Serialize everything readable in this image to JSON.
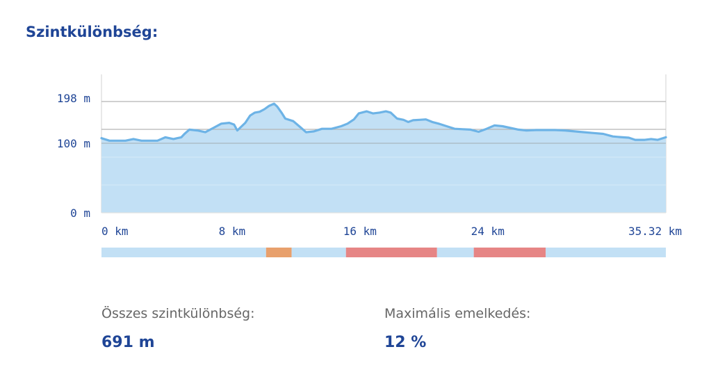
{
  "section": {
    "title": "Szintkülönbség:"
  },
  "colors": {
    "title": "#1f4596",
    "axis_text": "#1f4596",
    "profile_line": "#6db3e6",
    "profile_fill": "#c2e0f5",
    "grid": "#b5b5b5",
    "grade_low": "#c2e0f5",
    "grade_medium": "#e8a06c",
    "grade_high": "#e68585",
    "label_text": "#666666"
  },
  "chart_data": {
    "type": "area",
    "title": "",
    "xlabel": "",
    "ylabel": "",
    "x_unit": "km",
    "y_unit": "m",
    "xlim": [
      0,
      35.32
    ],
    "ylim": [
      0,
      198
    ],
    "y_ticks": [
      {
        "value": 198,
        "label": "198 m"
      },
      {
        "value": 100,
        "label": "100 m"
      },
      {
        "value": 0,
        "label": "0 m"
      }
    ],
    "x_ticks": [
      {
        "value": 0,
        "label": "0 km"
      },
      {
        "value": 8,
        "label": "8 km"
      },
      {
        "value": 16,
        "label": "16 km"
      },
      {
        "value": 24,
        "label": "24 km"
      },
      {
        "value": 35.32,
        "label": "35.32 km"
      }
    ],
    "grid": true,
    "series": [
      {
        "points": [
          [
            0,
            112
          ],
          [
            0.5,
            106
          ],
          [
            1.0,
            106
          ],
          [
            1.5,
            106
          ],
          [
            2.0,
            110
          ],
          [
            2.5,
            106
          ],
          [
            3.0,
            106
          ],
          [
            3.5,
            106
          ],
          [
            4.0,
            114
          ],
          [
            4.5,
            110
          ],
          [
            5.0,
            114
          ],
          [
            5.2,
            122
          ],
          [
            5.5,
            132
          ],
          [
            6.0,
            130
          ],
          [
            6.5,
            126
          ],
          [
            7.0,
            136
          ],
          [
            7.5,
            146
          ],
          [
            8.0,
            148
          ],
          [
            8.3,
            144
          ],
          [
            8.5,
            130
          ],
          [
            9.0,
            148
          ],
          [
            9.3,
            165
          ],
          [
            9.6,
            172
          ],
          [
            9.9,
            174
          ],
          [
            10.2,
            180
          ],
          [
            10.5,
            188
          ],
          [
            10.8,
            193
          ],
          [
            11.0,
            186
          ],
          [
            11.3,
            170
          ],
          [
            11.5,
            158
          ],
          [
            12.0,
            152
          ],
          [
            12.5,
            136
          ],
          [
            12.8,
            126
          ],
          [
            13.3,
            128
          ],
          [
            13.8,
            134
          ],
          [
            14.4,
            134
          ],
          [
            15.0,
            140
          ],
          [
            15.4,
            146
          ],
          [
            15.8,
            156
          ],
          [
            16.1,
            170
          ],
          [
            16.6,
            175
          ],
          [
            17.0,
            170
          ],
          [
            17.4,
            172
          ],
          [
            17.8,
            175
          ],
          [
            18.1,
            172
          ],
          [
            18.5,
            158
          ],
          [
            18.9,
            155
          ],
          [
            19.2,
            150
          ],
          [
            19.5,
            154
          ],
          [
            19.9,
            155
          ],
          [
            20.3,
            156
          ],
          [
            20.7,
            150
          ],
          [
            21.1,
            146
          ],
          [
            21.6,
            140
          ],
          [
            22.1,
            134
          ],
          [
            22.6,
            133
          ],
          [
            23.1,
            132
          ],
          [
            23.6,
            127
          ],
          [
            24.1,
            134
          ],
          [
            24.6,
            142
          ],
          [
            25.1,
            140
          ],
          [
            25.6,
            136
          ],
          [
            26.1,
            132
          ],
          [
            26.6,
            130
          ],
          [
            27.2,
            131
          ],
          [
            27.8,
            131
          ],
          [
            28.4,
            131
          ],
          [
            29.0,
            130
          ],
          [
            29.6,
            128
          ],
          [
            30.2,
            126
          ],
          [
            30.8,
            124
          ],
          [
            31.4,
            122
          ],
          [
            32.0,
            116
          ],
          [
            32.6,
            114
          ],
          [
            33.0,
            113
          ],
          [
            33.4,
            108
          ],
          [
            34.0,
            108
          ],
          [
            34.4,
            110
          ],
          [
            34.8,
            108
          ],
          [
            35.32,
            114
          ]
        ]
      }
    ],
    "grade_bands": [
      {
        "from": 0,
        "to": 10.3,
        "level": "low"
      },
      {
        "from": 10.3,
        "to": 11.9,
        "level": "medium"
      },
      {
        "from": 11.9,
        "to": 15.3,
        "level": "low"
      },
      {
        "from": 15.3,
        "to": 21.0,
        "level": "high"
      },
      {
        "from": 21.0,
        "to": 23.3,
        "level": "low"
      },
      {
        "from": 23.3,
        "to": 27.8,
        "level": "high"
      },
      {
        "from": 27.8,
        "to": 35.32,
        "level": "low"
      }
    ]
  },
  "stats": {
    "total_label": "Összes szintkülönbség:",
    "total_value": "691 m",
    "max_grade_label": "Maximális emelkedés:",
    "max_grade_value": "12 %"
  }
}
